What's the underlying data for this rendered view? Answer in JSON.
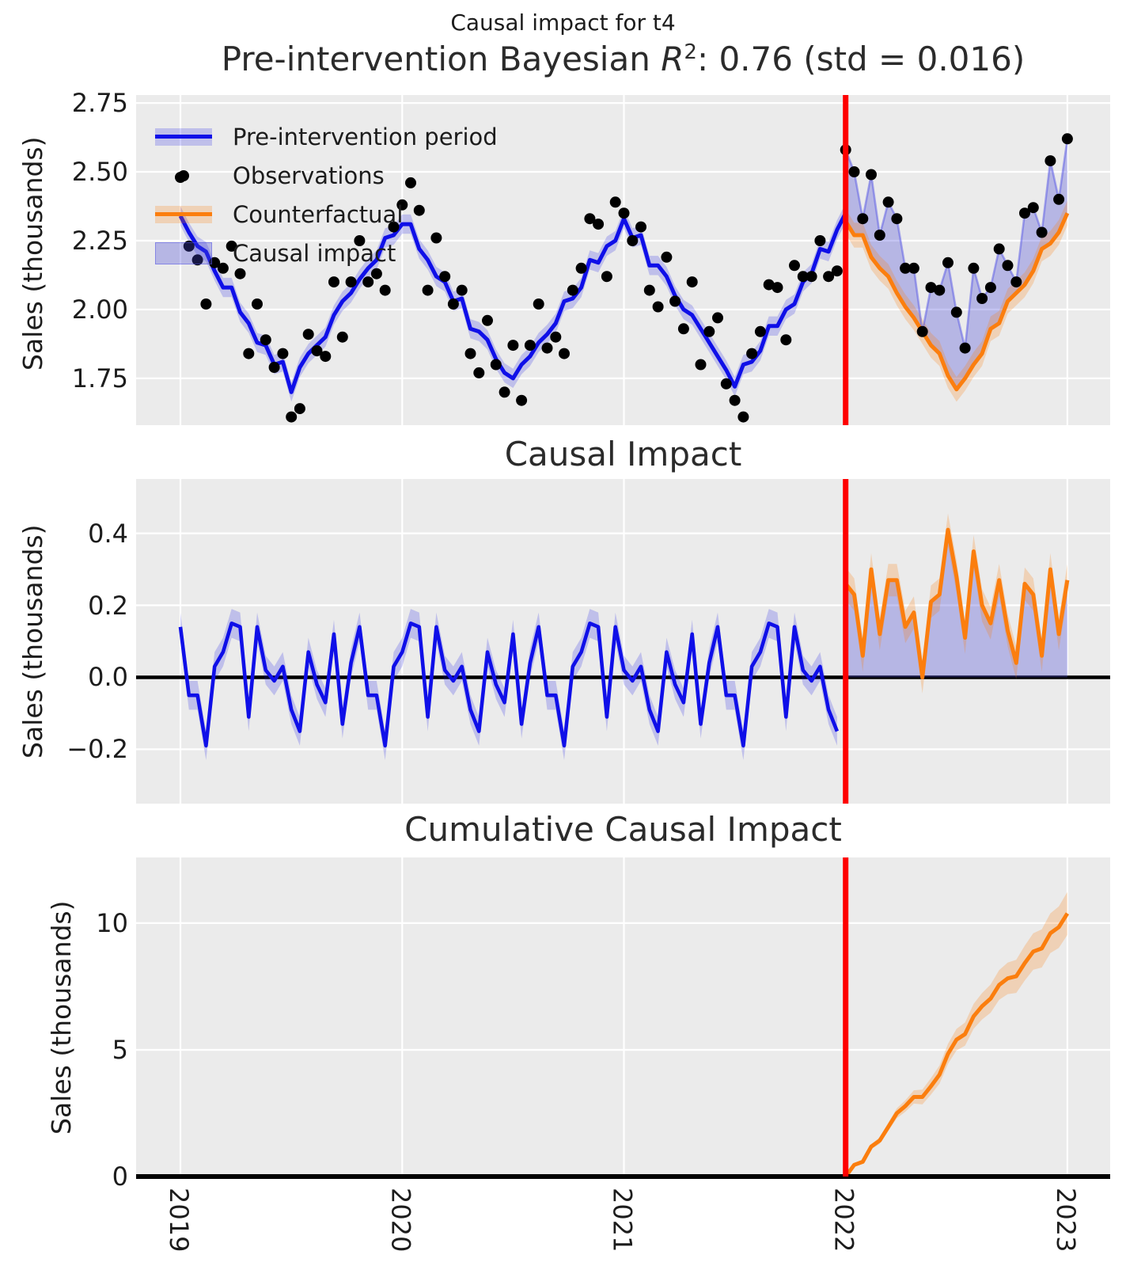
{
  "suptitle": "Causal impact for t4",
  "panels": {
    "pre_intervention": {
      "title_prefix": "Pre-intervention Bayesian ",
      "title_math_symbol": "R",
      "title_math_sup": "2",
      "title_suffix": ": 0.76 (std = 0.016)",
      "ylabel": "Sales (thousands)"
    },
    "impact": {
      "title": "Causal Impact",
      "ylabel": "Sales (thousands)"
    },
    "cumulative": {
      "title": "Cumulative Causal Impact",
      "ylabel": "Sales (thousands)"
    }
  },
  "legend": {
    "items": [
      {
        "label": "Pre-intervention period",
        "swatch": "blue-band-line"
      },
      {
        "label": "Observations",
        "swatch": "black-dot"
      },
      {
        "label": "Counterfactual",
        "swatch": "orange-band-line"
      },
      {
        "label": "Causal impact",
        "swatch": "blue-patch"
      }
    ]
  },
  "colors": {
    "blue": "#0f0fe8",
    "blue_band": "rgba(15,15,232,0.20)",
    "impact_fill": "rgba(70,70,215,0.32)",
    "post_obs_line": "rgba(85,85,230,0.50)",
    "orange": "#fb7e0e",
    "orange_band": "rgba(251,126,14,0.24)",
    "red": "#fe0000",
    "dot": "#000000",
    "background": "#ebebeb",
    "grid": "#ffffff",
    "zero_line": "#000000",
    "text": "#1c1c1c"
  },
  "chart_data": [
    {
      "type": "line",
      "title": "Pre-intervention Bayesian R2: 0.76 (std = 0.016)",
      "xlabel": "",
      "ylabel": "Sales (thousands)",
      "xlim": [
        2018.8,
        2023.193
      ],
      "ylim": [
        1.58,
        2.779
      ],
      "grid": true,
      "legend_position": "upper left",
      "intervention_x": 2022,
      "x_start": 2019.0,
      "x_end": 2023.0,
      "n_points": 105,
      "xticks": {
        "values": [
          2019,
          2020,
          2021,
          2022,
          2023
        ],
        "labels": [
          "2019",
          "2020",
          "2021",
          "2022",
          "2023"
        ]
      },
      "yticks": {
        "values": [
          1.75,
          2.0,
          2.25,
          2.5,
          2.75
        ],
        "labels": [
          "1.75",
          "2.00",
          "2.25",
          "2.50",
          "2.75"
        ]
      },
      "observations": [
        2.48,
        2.23,
        2.18,
        2.02,
        2.17,
        2.15,
        2.23,
        2.13,
        1.84,
        2.02,
        1.89,
        1.79,
        1.84,
        1.61,
        1.64,
        1.91,
        1.85,
        1.83,
        2.1,
        1.9,
        2.1,
        2.25,
        2.1,
        2.13,
        2.07,
        2.3,
        2.38,
        2.46,
        2.36,
        2.07,
        2.26,
        2.12,
        2.02,
        2.07,
        1.84,
        1.77,
        1.96,
        1.8,
        1.7,
        1.87,
        1.67,
        1.87,
        2.02,
        1.86,
        1.9,
        1.84,
        2.07,
        2.15,
        2.33,
        2.31,
        2.12,
        2.39,
        2.35,
        2.25,
        2.3,
        2.07,
        2.01,
        2.19,
        2.03,
        1.93,
        2.1,
        1.8,
        1.92,
        1.97,
        1.73,
        1.67,
        1.61,
        1.84,
        1.92,
        2.09,
        2.08,
        1.89,
        2.16,
        2.12,
        2.12,
        2.25,
        2.12,
        2.14,
        2.58,
        2.5,
        2.33,
        2.49,
        2.27,
        2.39,
        2.33,
        2.15,
        2.15,
        1.92,
        2.08,
        2.07,
        2.17,
        1.99,
        1.86,
        2.15,
        2.04,
        2.08,
        2.22,
        2.16,
        2.1,
        2.35,
        2.37,
        2.28,
        2.54,
        2.4,
        2.62
      ],
      "pre_fit": {
        "start_index": 0,
        "band_halfwidth": 0.035,
        "values": [
          2.34,
          2.28,
          2.23,
          2.21,
          2.14,
          2.08,
          2.08,
          1.99,
          1.95,
          1.88,
          1.87,
          1.8,
          1.81,
          1.7,
          1.79,
          1.84,
          1.87,
          1.9,
          1.98,
          2.03,
          2.06,
          2.11,
          2.15,
          2.18,
          2.26,
          2.27,
          2.31,
          2.31,
          2.22,
          2.18,
          2.12,
          2.1,
          2.03,
          2.04,
          1.93,
          1.92,
          1.89,
          1.82,
          1.77,
          1.75,
          1.8,
          1.83,
          1.88,
          1.91,
          1.95,
          2.03,
          2.04,
          2.08,
          2.18,
          2.17,
          2.23,
          2.25,
          2.33,
          2.26,
          2.27,
          2.16,
          2.16,
          2.12,
          2.05,
          2.0,
          1.98,
          1.93,
          1.88,
          1.83,
          1.78,
          1.72,
          1.8,
          1.81,
          1.85,
          1.94,
          1.94,
          2.0,
          2.02,
          2.1,
          2.13,
          2.22,
          2.21,
          2.29,
          2.35
        ]
      },
      "counterfactual": {
        "start_index": 78,
        "band_halfwidth": 0.045,
        "values": [
          2.32,
          2.27,
          2.27,
          2.19,
          2.15,
          2.12,
          2.06,
          2.01,
          1.97,
          1.92,
          1.87,
          1.84,
          1.76,
          1.71,
          1.75,
          1.8,
          1.84,
          1.93,
          1.95,
          2.03,
          2.06,
          2.09,
          2.14,
          2.22,
          2.24,
          2.28,
          2.35
        ]
      },
      "causal_impact_fill": {
        "start_index": 78,
        "between": [
          "observations",
          "counterfactual"
        ]
      }
    },
    {
      "type": "line",
      "title": "Causal Impact",
      "xlabel": "",
      "ylabel": "Sales (thousands)",
      "xlim": [
        2018.8,
        2023.193
      ],
      "ylim": [
        -0.351,
        0.551
      ],
      "grid": true,
      "zero_line": true,
      "intervention_x": 2022,
      "xticks": {
        "values": [
          2019,
          2020,
          2021,
          2022,
          2023
        ],
        "labels": [
          "2019",
          "2020",
          "2021",
          "2022",
          "2023"
        ]
      },
      "yticks": {
        "values": [
          -0.2,
          0.0,
          0.2,
          0.4
        ],
        "labels": [
          "−0.2",
          "0.0",
          "0.2",
          "0.4"
        ]
      },
      "pre_impact": {
        "start_index": 0,
        "band_halfwidth": 0.04,
        "values": [
          0.14,
          -0.05,
          -0.05,
          -0.19,
          0.03,
          0.07,
          0.15,
          0.14,
          -0.11,
          0.14,
          0.02,
          -0.01,
          0.03,
          -0.09,
          -0.15,
          0.07,
          -0.02,
          -0.07,
          0.12,
          -0.13,
          0.04,
          0.14,
          -0.05,
          -0.05,
          -0.19,
          0.03,
          0.07,
          0.15,
          0.14,
          -0.11,
          0.14,
          0.02,
          -0.01,
          0.03,
          -0.09,
          -0.15,
          0.07,
          -0.02,
          -0.07,
          0.12,
          -0.13,
          0.04,
          0.14,
          -0.05,
          -0.05,
          -0.19,
          0.03,
          0.07,
          0.15,
          0.14,
          -0.11,
          0.14,
          0.02,
          -0.01,
          0.03,
          -0.09,
          -0.15,
          0.07,
          -0.02,
          -0.07,
          0.12,
          -0.13,
          0.04,
          0.14,
          -0.05,
          -0.05,
          -0.19,
          0.03,
          0.07,
          0.15,
          0.14,
          -0.11,
          0.14,
          0.02,
          -0.01,
          0.03,
          -0.09,
          -0.15
        ]
      },
      "post_impact": {
        "start_index": 78,
        "band_halfwidth": 0.045,
        "fill_to_zero": true,
        "values": [
          0.26,
          0.23,
          0.06,
          0.3,
          0.12,
          0.27,
          0.27,
          0.14,
          0.18,
          0.0,
          0.21,
          0.23,
          0.41,
          0.28,
          0.11,
          0.35,
          0.2,
          0.15,
          0.27,
          0.13,
          0.04,
          0.26,
          0.23,
          0.06,
          0.3,
          0.12,
          0.27
        ]
      }
    },
    {
      "type": "line",
      "title": "Cumulative Causal Impact",
      "xlabel": "",
      "ylabel": "Sales (thousands)",
      "xlim": [
        2018.8,
        2023.193
      ],
      "ylim": [
        0,
        12.59
      ],
      "grid": true,
      "zero_line": true,
      "intervention_x": 2022,
      "xticks": {
        "values": [
          2019,
          2020,
          2021,
          2022,
          2023
        ],
        "labels": [
          "2019",
          "2020",
          "2021",
          "2022",
          "2023"
        ]
      },
      "yticks": {
        "values": [
          0,
          5,
          10
        ],
        "labels": [
          "0",
          "5",
          "10"
        ]
      },
      "cumulative": {
        "x_start": 2022.0,
        "x_end": 2023.0,
        "band_halfwidth_start": 0.0,
        "band_halfwidth_end": 0.85,
        "values": [
          0,
          0.46,
          0.58,
          1.18,
          1.42,
          1.96,
          2.5,
          2.78,
          3.14,
          3.14,
          3.56,
          4.02,
          4.84,
          5.4,
          5.62,
          6.32,
          6.72,
          7.02,
          7.56,
          7.82,
          7.9,
          8.42,
          8.88,
          9.0,
          9.6,
          9.84,
          10.38
        ]
      }
    }
  ]
}
